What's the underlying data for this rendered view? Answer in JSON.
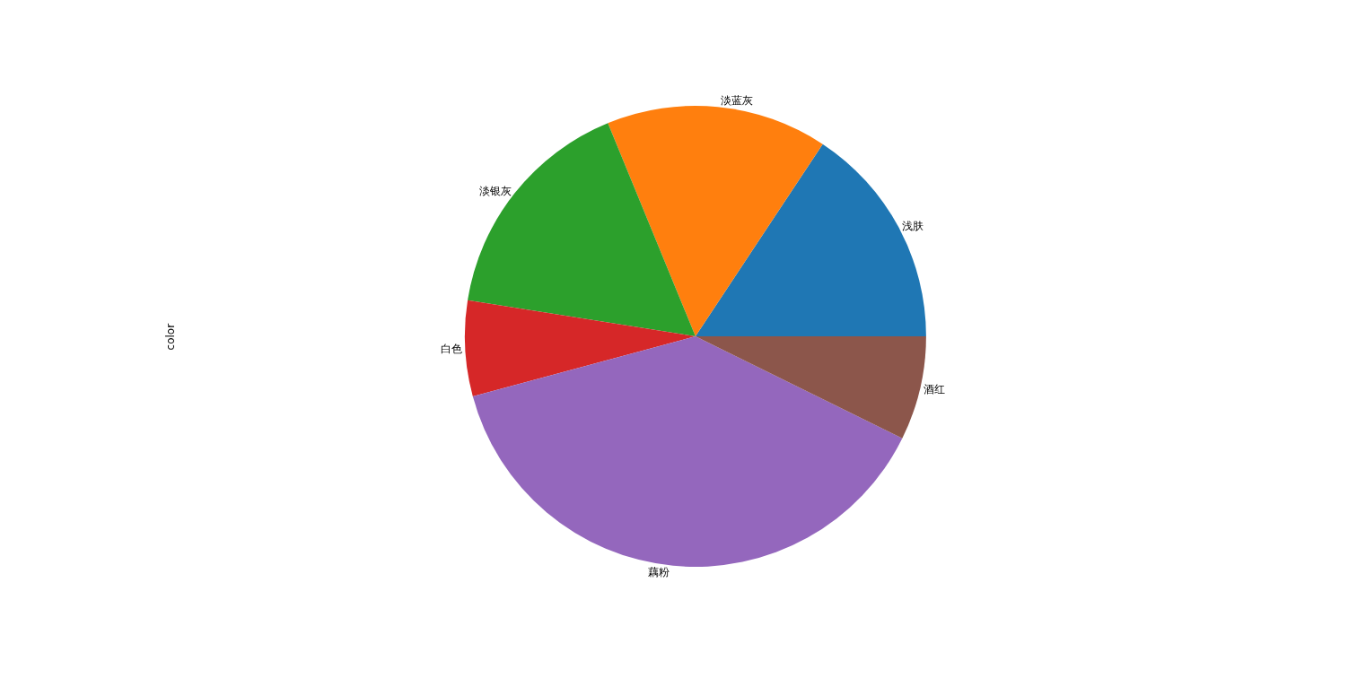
{
  "chart_data": {
    "type": "pie",
    "ylabel": "color",
    "categories": [
      "浅肤",
      "淡蓝灰",
      "淡银灰",
      "白色",
      "藕粉",
      "酒红"
    ],
    "values": [
      15.7,
      15.5,
      16.3,
      6.7,
      38.5,
      7.3
    ],
    "colors": [
      "#1f77b4",
      "#ff7f0e",
      "#2ca02c",
      "#d62728",
      "#9467bd",
      "#8c564b"
    ],
    "legend": false
  }
}
